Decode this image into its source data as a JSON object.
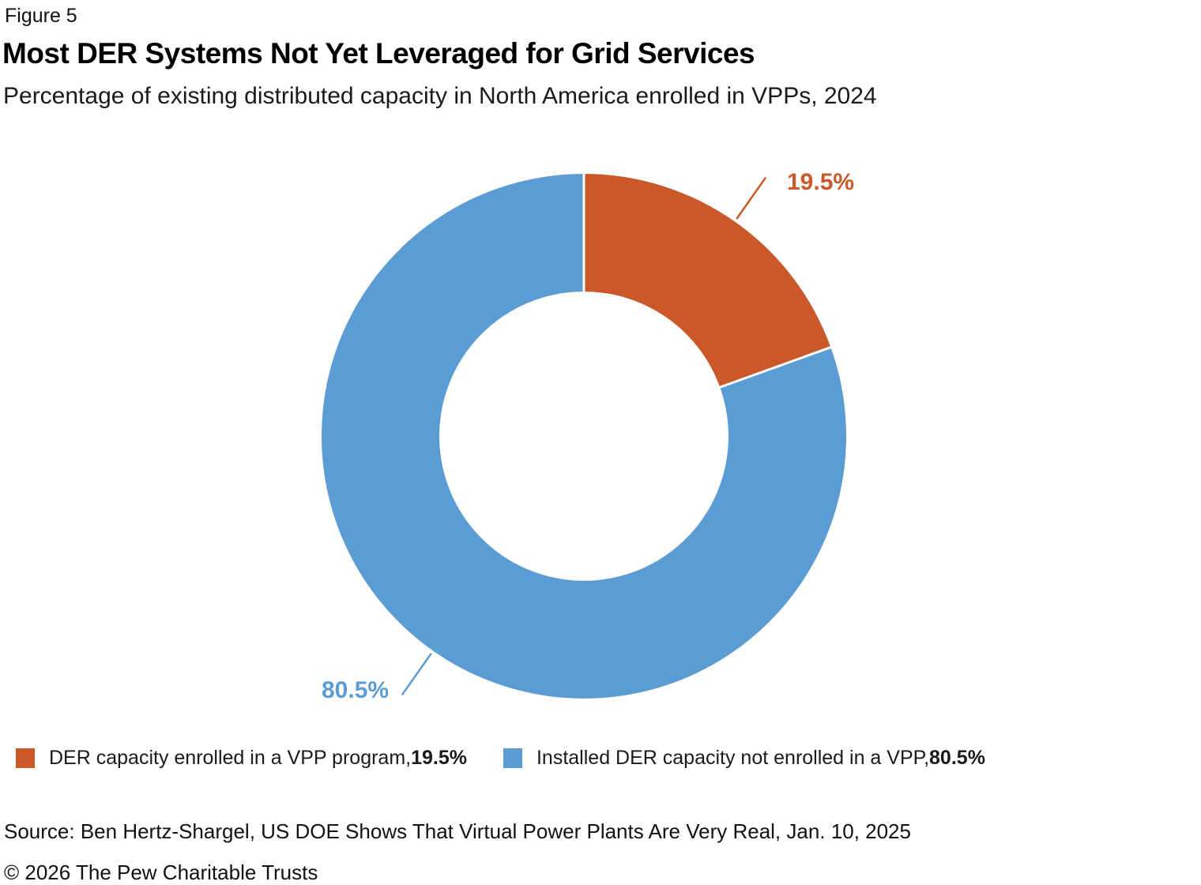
{
  "figure_label": "Figure 5",
  "title": "Most DER Systems Not Yet Leveraged for Grid Services",
  "subtitle": "Percentage of existing distributed capacity in North America enrolled in VPPs, 2024",
  "chart_data": {
    "type": "pie",
    "subtype": "donut",
    "title": "Most DER Systems Not Yet Leveraged for Grid Services",
    "subtitle": "Percentage of existing distributed capacity in North America enrolled in VPPs, 2024",
    "start_angle_deg": 0,
    "direction": "clockwise",
    "donut_hole_ratio": 0.55,
    "separator_color": "#ffffff",
    "categories": [
      "DER capacity enrolled in a VPP program",
      "Installed DER capacity not enrolled in a VPP"
    ],
    "values": [
      19.5,
      80.5
    ],
    "slices": [
      {
        "name": "DER capacity enrolled in a VPP program",
        "value": 19.5,
        "pct_label": "19.5%",
        "color": "#CB5828"
      },
      {
        "name": "Installed DER capacity not enrolled in a VPP",
        "value": 80.5,
        "pct_label": "80.5%",
        "color": "#5C9CD4"
      }
    ],
    "legend_position": "bottom"
  },
  "legend": {
    "items": [
      {
        "label": "DER capacity enrolled in a VPP program, ",
        "value": "19.5%"
      },
      {
        "label": "Installed DER capacity not enrolled in a VPP, ",
        "value": "80.5%"
      }
    ]
  },
  "source": "Source: Ben Hertz-Shargel, US DOE Shows That Virtual Power Plants Are Very Real, Jan. 10, 2025",
  "copyright": "© 2026 The Pew Charitable Trusts"
}
